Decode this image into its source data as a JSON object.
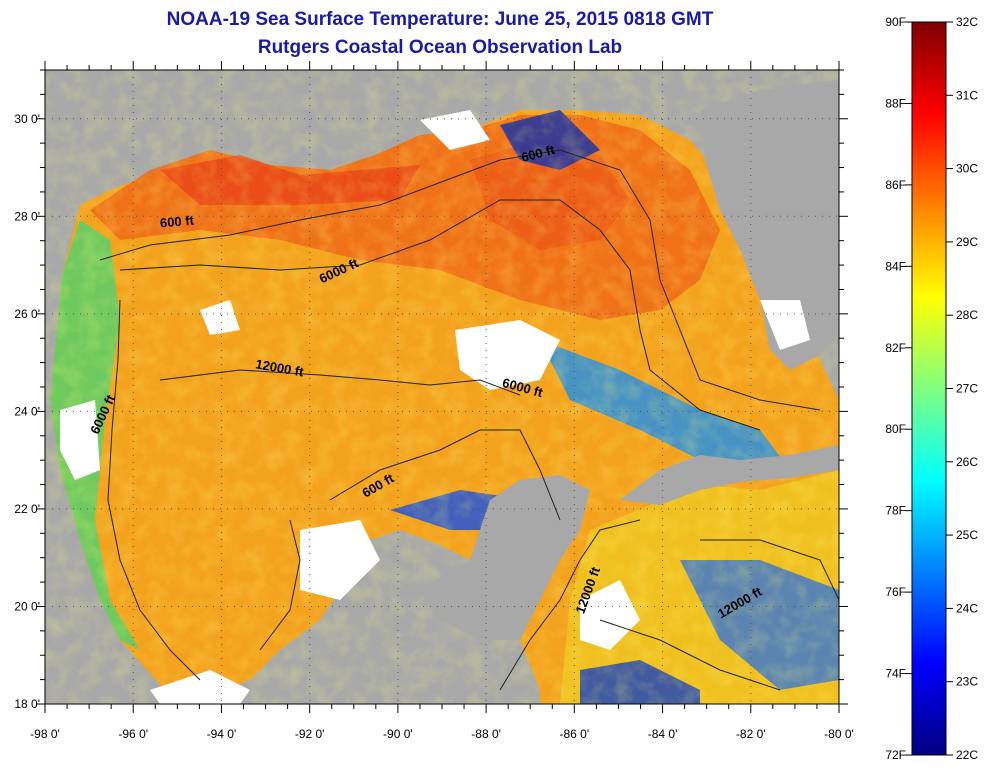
{
  "header": {
    "title": "NOAA-19 Sea Surface Temperature:  June 25, 2015 0818 GMT",
    "subtitle": "Rutgers Coastal Ocean Observation Lab"
  },
  "map": {
    "lon_range": [
      -98,
      -80
    ],
    "lat_range": [
      18,
      31
    ],
    "lon_ticks": [
      "-98 0'",
      "-96 0'",
      "-94 0'",
      "-92 0'",
      "-90 0'",
      "-88 0'",
      "-86 0'",
      "-84 0'",
      "-82 0'",
      "-80 0'"
    ],
    "lat_ticks": [
      "18 0'",
      "20 0'",
      "22 0'",
      "24 0'",
      "26 0'",
      "28 0'",
      "30 0'"
    ],
    "land_color": "#a8a8a8",
    "cloud_color": "#ffffff",
    "contour_labels": [
      {
        "text": "600 ft",
        "lon": -86.8,
        "lat": 29.2,
        "angle": -15
      },
      {
        "text": "600 ft",
        "lon": -95.0,
        "lat": 27.8,
        "angle": -5
      },
      {
        "text": "6000 ft",
        "lon": -91.3,
        "lat": 26.8,
        "angle": -25
      },
      {
        "text": "12000 ft",
        "lon": -92.7,
        "lat": 24.8,
        "angle": 10
      },
      {
        "text": "6000 ft",
        "lon": -96.6,
        "lat": 23.9,
        "angle": -65
      },
      {
        "text": "6000 ft",
        "lon": -87.2,
        "lat": 24.4,
        "angle": 15
      },
      {
        "text": "600 ft",
        "lon": -90.4,
        "lat": 22.4,
        "angle": -30
      },
      {
        "text": "12000 ft",
        "lon": -85.6,
        "lat": 20.3,
        "angle": -70
      },
      {
        "text": "12000 ft",
        "lon": -82.2,
        "lat": 20.0,
        "angle": -30
      }
    ]
  },
  "colorbar": {
    "fahrenheit_labels": [
      "90F",
      "88F",
      "86F",
      "84F",
      "82F",
      "80F",
      "78F",
      "76F",
      "74F",
      "72F"
    ],
    "celsius_labels": [
      "32C",
      "31C",
      "30C",
      "29C",
      "28C",
      "27C",
      "26C",
      "25C",
      "24C",
      "23C",
      "22C"
    ],
    "range_f": [
      72,
      90
    ],
    "range_c": [
      22,
      32
    ],
    "stops": [
      "#00007f",
      "#0000ff",
      "#0080ff",
      "#00ffff",
      "#80ff80",
      "#ffff00",
      "#ff8000",
      "#ff0000",
      "#7f0000"
    ]
  }
}
